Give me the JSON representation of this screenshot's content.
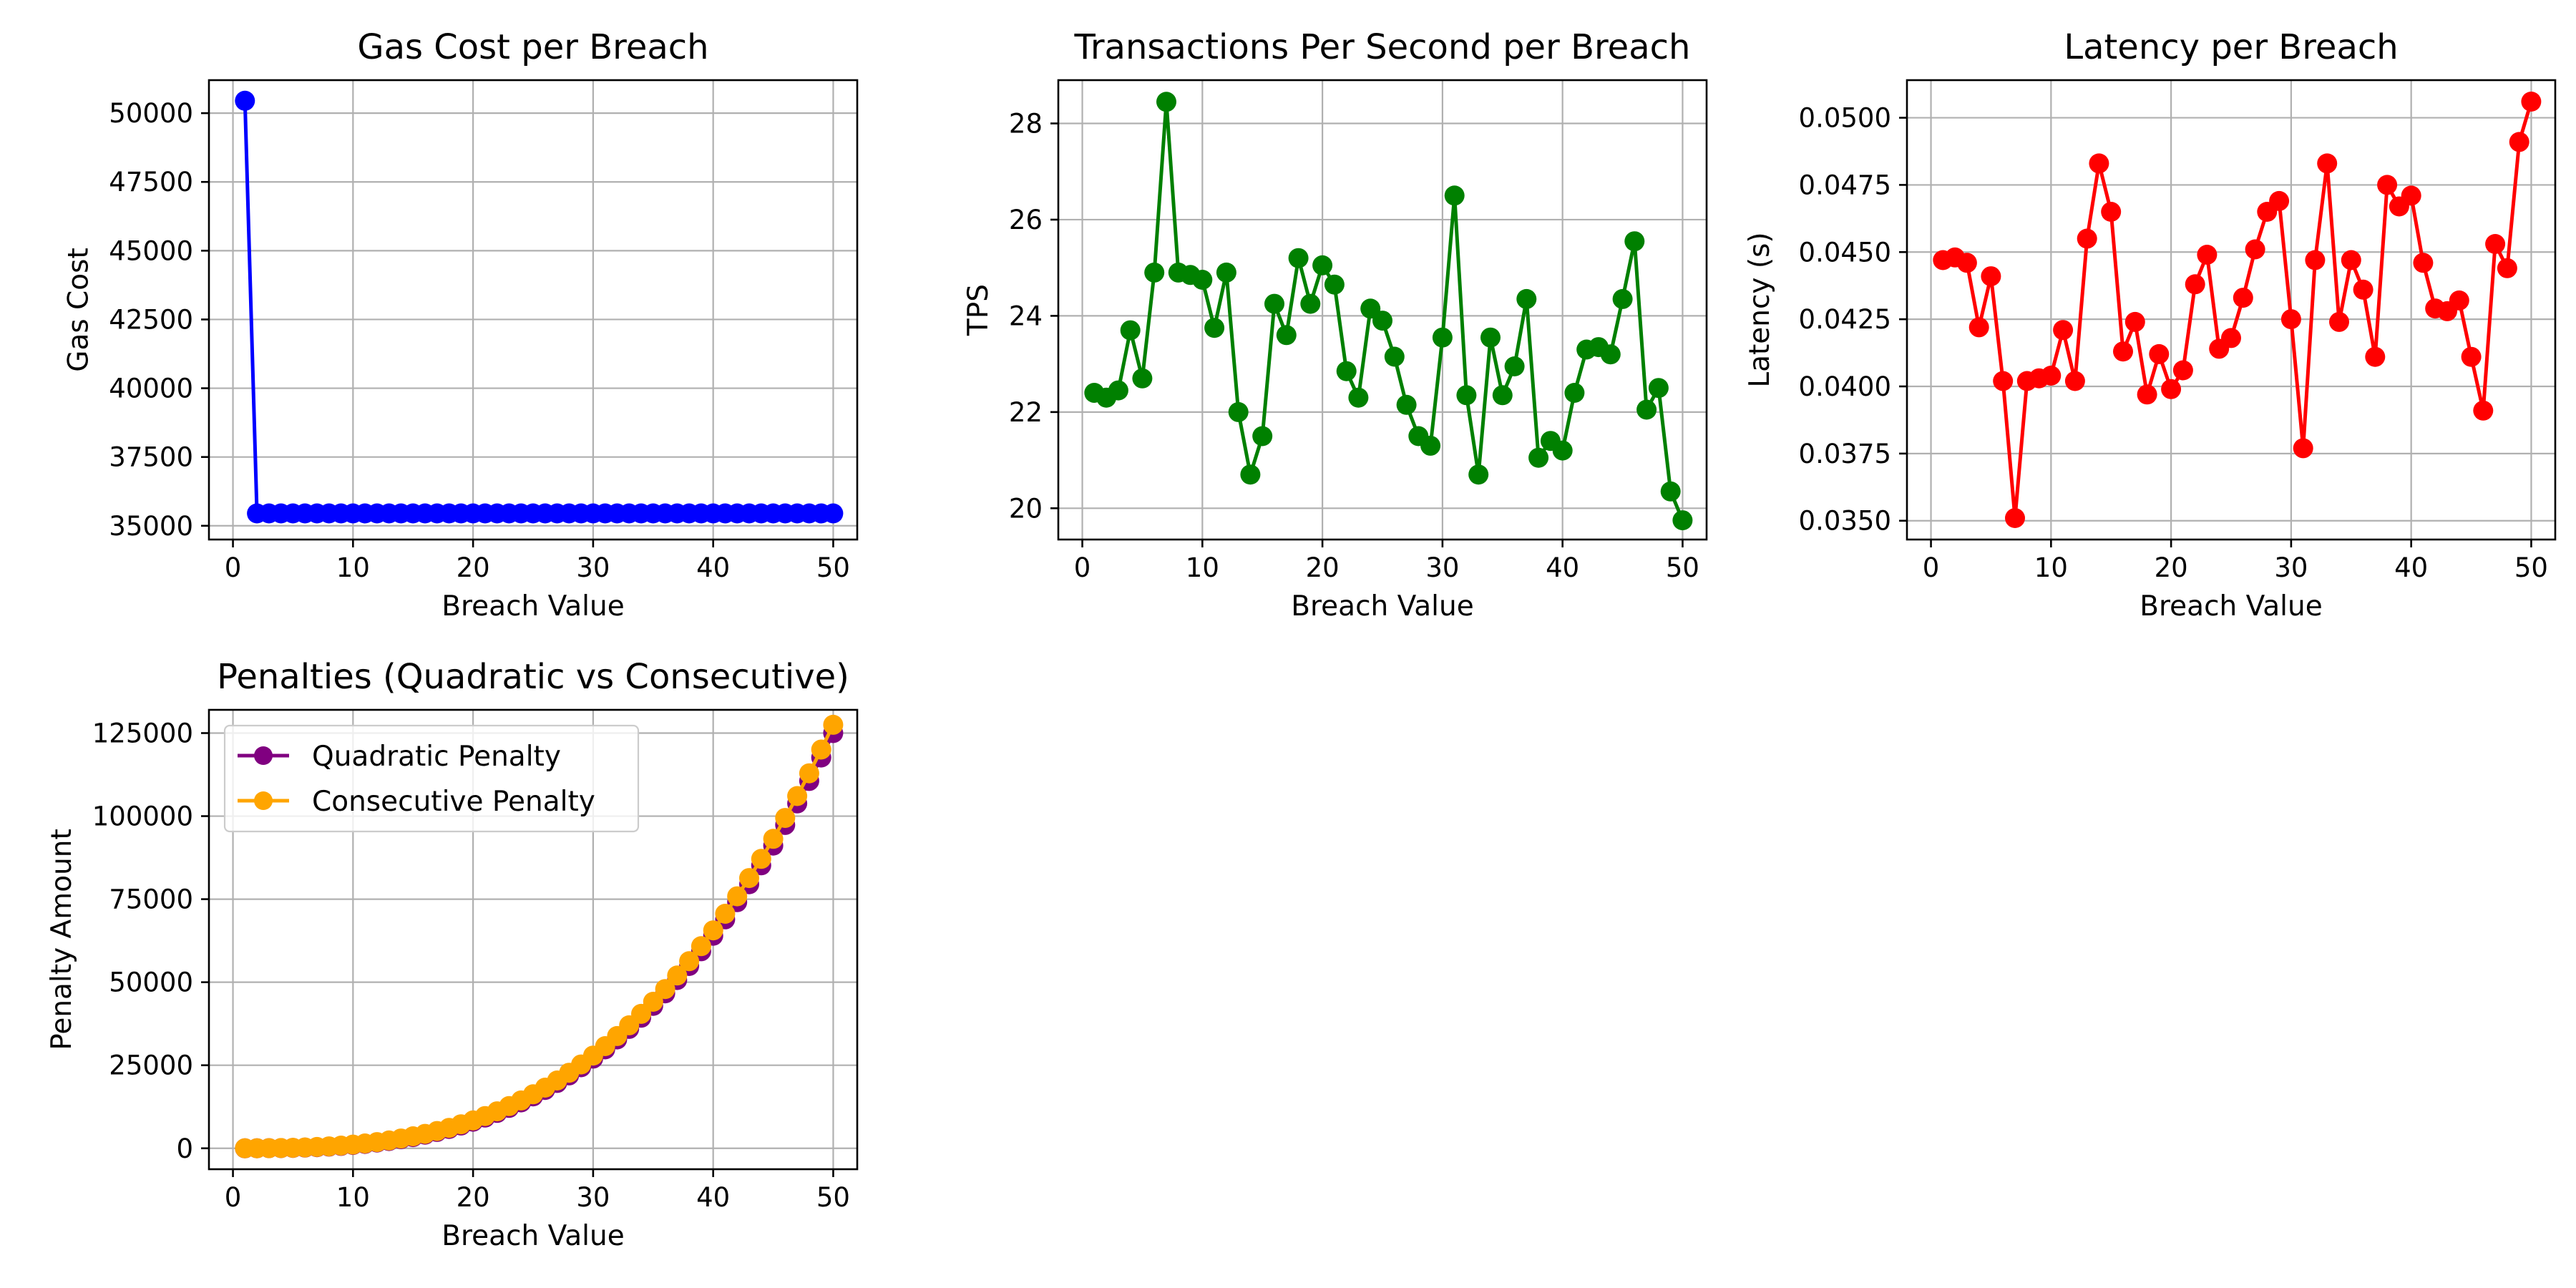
{
  "chart_data": [
    {
      "type": "line",
      "title": "Gas Cost per Breach",
      "xlabel": "Breach Value",
      "ylabel": "Gas Cost",
      "xlim": [
        -2,
        52
      ],
      "ylim": [
        34500,
        51200
      ],
      "xticks": [
        0,
        10,
        20,
        30,
        40,
        50
      ],
      "xtick_labels": [
        "0",
        "10",
        "20",
        "30",
        "40",
        "50"
      ],
      "yticks": [
        35000,
        37500,
        40000,
        42500,
        45000,
        47500,
        50000
      ],
      "ytick_labels": [
        "35000",
        "37500",
        "40000",
        "42500",
        "45000",
        "47500",
        "50000"
      ],
      "grid": true,
      "series": [
        {
          "color": "#0000ff",
          "marker": "circle",
          "x": [
            1,
            2,
            3,
            4,
            5,
            6,
            7,
            8,
            9,
            10,
            11,
            12,
            13,
            14,
            15,
            16,
            17,
            18,
            19,
            20,
            21,
            22,
            23,
            24,
            25,
            26,
            27,
            28,
            29,
            30,
            31,
            32,
            33,
            34,
            35,
            36,
            37,
            38,
            39,
            40,
            41,
            42,
            43,
            44,
            45,
            46,
            47,
            48,
            49,
            50
          ],
          "y": [
            50450,
            35450,
            35450,
            35450,
            35450,
            35450,
            35450,
            35450,
            35450,
            35450,
            35450,
            35450,
            35450,
            35450,
            35450,
            35450,
            35450,
            35450,
            35450,
            35450,
            35450,
            35450,
            35450,
            35450,
            35450,
            35450,
            35450,
            35450,
            35450,
            35450,
            35450,
            35450,
            35450,
            35450,
            35450,
            35450,
            35450,
            35450,
            35450,
            35450,
            35450,
            35450,
            35450,
            35450,
            35450,
            35450,
            35450,
            35450,
            35450,
            35450
          ]
        }
      ]
    },
    {
      "type": "line",
      "title": "Transactions Per Second per Breach",
      "xlabel": "Breach Value",
      "ylabel": "TPS",
      "xlim": [
        -2,
        52
      ],
      "ylim": [
        19.35,
        28.9
      ],
      "xticks": [
        0,
        10,
        20,
        30,
        40,
        50
      ],
      "xtick_labels": [
        "0",
        "10",
        "20",
        "30",
        "40",
        "50"
      ],
      "yticks": [
        20,
        22,
        24,
        26,
        28
      ],
      "ytick_labels": [
        "20",
        "22",
        "24",
        "26",
        "28"
      ],
      "grid": true,
      "series": [
        {
          "color": "#008000",
          "marker": "circle",
          "x": [
            1,
            2,
            3,
            4,
            5,
            6,
            7,
            8,
            9,
            10,
            11,
            12,
            13,
            14,
            15,
            16,
            17,
            18,
            19,
            20,
            21,
            22,
            23,
            24,
            25,
            26,
            27,
            28,
            29,
            30,
            31,
            32,
            33,
            34,
            35,
            36,
            37,
            38,
            39,
            40,
            41,
            42,
            43,
            44,
            45,
            46,
            47,
            48,
            49,
            50
          ],
          "y": [
            22.4,
            22.3,
            22.45,
            23.7,
            22.7,
            24.9,
            28.45,
            24.9,
            24.85,
            24.75,
            23.75,
            24.9,
            22.0,
            20.7,
            21.5,
            24.25,
            23.6,
            25.2,
            24.25,
            25.05,
            24.65,
            22.85,
            22.3,
            24.15,
            23.9,
            23.15,
            22.15,
            21.5,
            21.3,
            23.55,
            26.5,
            22.35,
            20.7,
            23.55,
            22.35,
            22.95,
            24.35,
            21.05,
            21.4,
            21.2,
            22.4,
            23.3,
            23.35,
            23.2,
            24.35,
            25.55,
            22.05,
            22.5,
            20.35,
            19.75
          ]
        }
      ]
    },
    {
      "type": "line",
      "title": "Latency per Breach",
      "xlabel": "Breach Value",
      "ylabel": "Latency (s)",
      "xlim": [
        -2,
        52
      ],
      "ylim": [
        0.0343,
        0.0514
      ],
      "xticks": [
        0,
        10,
        20,
        30,
        40,
        50
      ],
      "xtick_labels": [
        "0",
        "10",
        "20",
        "30",
        "40",
        "50"
      ],
      "yticks": [
        0.035,
        0.0375,
        0.04,
        0.0425,
        0.045,
        0.0475,
        0.05
      ],
      "ytick_labels": [
        "0.0350",
        "0.0375",
        "0.0400",
        "0.0425",
        "0.0450",
        "0.0475",
        "0.0500"
      ],
      "grid": true,
      "series": [
        {
          "color": "#ff0000",
          "marker": "circle",
          "x": [
            1,
            2,
            3,
            4,
            5,
            6,
            7,
            8,
            9,
            10,
            11,
            12,
            13,
            14,
            15,
            16,
            17,
            18,
            19,
            20,
            21,
            22,
            23,
            24,
            25,
            26,
            27,
            28,
            29,
            30,
            31,
            32,
            33,
            34,
            35,
            36,
            37,
            38,
            39,
            40,
            41,
            42,
            43,
            44,
            45,
            46,
            47,
            48,
            49,
            50
          ],
          "y": [
            0.0447,
            0.0448,
            0.0446,
            0.0422,
            0.0441,
            0.0402,
            0.0351,
            0.0402,
            0.0403,
            0.0404,
            0.0421,
            0.0402,
            0.0455,
            0.0483,
            0.0465,
            0.0413,
            0.0424,
            0.0397,
            0.0412,
            0.0399,
            0.0406,
            0.0438,
            0.0449,
            0.0414,
            0.0418,
            0.0433,
            0.0451,
            0.0465,
            0.0469,
            0.0425,
            0.0377,
            0.0447,
            0.0483,
            0.0424,
            0.0447,
            0.0436,
            0.0411,
            0.0475,
            0.0467,
            0.0471,
            0.0446,
            0.0429,
            0.0428,
            0.0432,
            0.0411,
            0.0391,
            0.0453,
            0.0444,
            0.0491,
            0.0506
          ]
        }
      ]
    },
    {
      "type": "line",
      "title": "Penalties (Quadratic vs Consecutive)",
      "xlabel": "Breach Value",
      "ylabel": "Penalty Amount",
      "xlim": [
        -2,
        52
      ],
      "ylim": [
        -6300,
        132000
      ],
      "xticks": [
        0,
        10,
        20,
        30,
        40,
        50
      ],
      "xtick_labels": [
        "0",
        "10",
        "20",
        "30",
        "40",
        "50"
      ],
      "yticks": [
        0,
        25000,
        50000,
        75000,
        100000,
        125000
      ],
      "ytick_labels": [
        "0",
        "25000",
        "50000",
        "75000",
        "100000",
        "125000"
      ],
      "grid": true,
      "legend": "top-left",
      "series": [
        {
          "name": "Quadratic Penalty",
          "color": "#800080",
          "marker": "circle",
          "x": [
            1,
            2,
            3,
            4,
            5,
            6,
            7,
            8,
            9,
            10,
            11,
            12,
            13,
            14,
            15,
            16,
            17,
            18,
            19,
            20,
            21,
            22,
            23,
            24,
            25,
            26,
            27,
            28,
            29,
            30,
            31,
            32,
            33,
            34,
            35,
            36,
            37,
            38,
            39,
            40,
            41,
            42,
            43,
            44,
            45,
            46,
            47,
            48,
            49,
            50
          ],
          "y": [
            1,
            8,
            27,
            64,
            125,
            216,
            343,
            512,
            729,
            1000,
            1331,
            1728,
            2197,
            2744,
            3375,
            4096,
            4913,
            5832,
            6859,
            8000,
            9261,
            10648,
            12167,
            13824,
            15625,
            17576,
            19683,
            21952,
            24389,
            27000,
            29791,
            32768,
            35937,
            39304,
            42875,
            46656,
            50653,
            54872,
            59319,
            64000,
            68921,
            74088,
            79507,
            85184,
            91125,
            97336,
            103823,
            110592,
            117649,
            125000
          ]
        },
        {
          "name": "Consecutive Penalty",
          "color": "#ffa500",
          "marker": "circle",
          "x": [
            1,
            2,
            3,
            4,
            5,
            6,
            7,
            8,
            9,
            10,
            11,
            12,
            13,
            14,
            15,
            16,
            17,
            18,
            19,
            20,
            21,
            22,
            23,
            24,
            25,
            26,
            27,
            28,
            29,
            30,
            31,
            32,
            33,
            34,
            35,
            36,
            37,
            38,
            39,
            40,
            41,
            42,
            43,
            44,
            45,
            46,
            47,
            48,
            49,
            50
          ],
          "y": [
            2,
            12,
            36,
            80,
            150,
            252,
            392,
            576,
            810,
            1100,
            1452,
            1872,
            2366,
            2940,
            3600,
            4352,
            5202,
            6156,
            7220,
            8400,
            9702,
            11132,
            12696,
            14400,
            16250,
            18252,
            20412,
            22736,
            25230,
            27900,
            30752,
            33792,
            37026,
            40460,
            44100,
            47952,
            52022,
            56316,
            60840,
            65600,
            70602,
            75852,
            81356,
            87120,
            93150,
            99452,
            106032,
            112896,
            120050,
            127500
          ]
        }
      ]
    }
  ]
}
